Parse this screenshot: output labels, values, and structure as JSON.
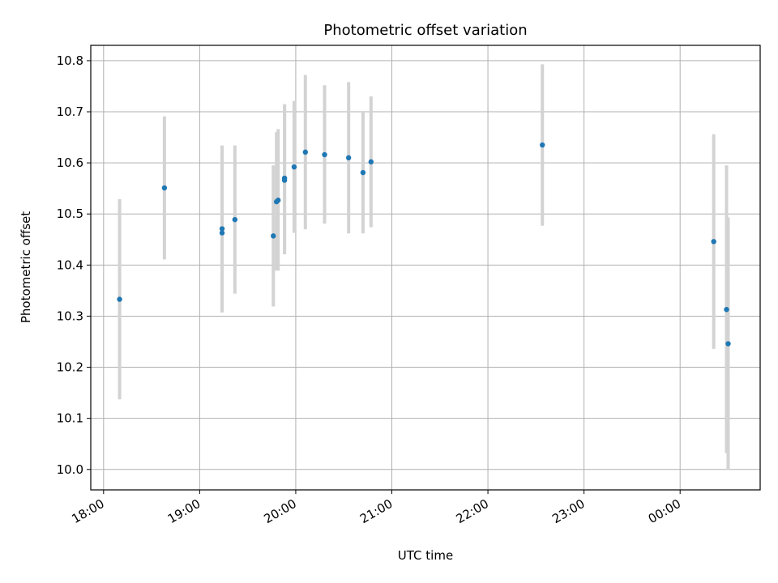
{
  "chart_data": {
    "type": "scatter",
    "title": "Photometric offset variation",
    "xlabel": "UTC time",
    "ylabel": "Photometric offset",
    "x_ticks": [
      "18:00",
      "19:00",
      "20:00",
      "21:00",
      "22:00",
      "23:00",
      "00:00"
    ],
    "y_ticks": [
      "10.0",
      "10.1",
      "10.2",
      "10.3",
      "10.4",
      "10.5",
      "10.6",
      "10.7",
      "10.8"
    ],
    "xlim": [
      "17:52",
      "00:50"
    ],
    "ylim": [
      9.96,
      10.83
    ],
    "grid": true,
    "colors": {
      "points": "#1f77b4",
      "errorbars": "#d3d3d3",
      "grid": "#b0b0b0"
    },
    "series": [
      {
        "points": [
          {
            "time": "18:10",
            "y": 10.333,
            "ylow": 10.137,
            "yhigh": 10.529
          },
          {
            "time": "18:38",
            "y": 10.551,
            "ylow": 10.411,
            "yhigh": 10.691
          },
          {
            "time": "19:14",
            "y": 10.471,
            "ylow": 10.307,
            "yhigh": 10.634
          },
          {
            "time": "19:14",
            "y": 10.463,
            "ylow": 10.307,
            "yhigh": 10.619
          },
          {
            "time": "19:22",
            "y": 10.489,
            "ylow": 10.344,
            "yhigh": 10.634
          },
          {
            "time": "19:46",
            "y": 10.457,
            "ylow": 10.319,
            "yhigh": 10.595
          },
          {
            "time": "19:48",
            "y": 10.524,
            "ylow": 10.389,
            "yhigh": 10.66
          },
          {
            "time": "19:49",
            "y": 10.527,
            "ylow": 10.389,
            "yhigh": 10.666
          },
          {
            "time": "19:53",
            "y": 10.57,
            "ylow": 10.425,
            "yhigh": 10.715
          },
          {
            "time": "19:53",
            "y": 10.566,
            "ylow": 10.421,
            "yhigh": 10.712
          },
          {
            "time": "19:59",
            "y": 10.592,
            "ylow": 10.463,
            "yhigh": 10.721
          },
          {
            "time": "20:06",
            "y": 10.621,
            "ylow": 10.47,
            "yhigh": 10.772
          },
          {
            "time": "20:18",
            "y": 10.616,
            "ylow": 10.481,
            "yhigh": 10.752
          },
          {
            "time": "20:33",
            "y": 10.61,
            "ylow": 10.462,
            "yhigh": 10.758
          },
          {
            "time": "20:42",
            "y": 10.581,
            "ylow": 10.462,
            "yhigh": 10.7
          },
          {
            "time": "20:47",
            "y": 10.602,
            "ylow": 10.474,
            "yhigh": 10.73
          },
          {
            "time": "22:34",
            "y": 10.635,
            "ylow": 10.477,
            "yhigh": 10.793
          },
          {
            "time": "00:21",
            "y": 10.446,
            "ylow": 10.236,
            "yhigh": 10.656
          },
          {
            "time": "00:29",
            "y": 10.313,
            "ylow": 10.032,
            "yhigh": 10.595
          },
          {
            "time": "00:30",
            "y": 10.246,
            "ylow": 9.999,
            "yhigh": 10.493
          }
        ]
      }
    ]
  }
}
